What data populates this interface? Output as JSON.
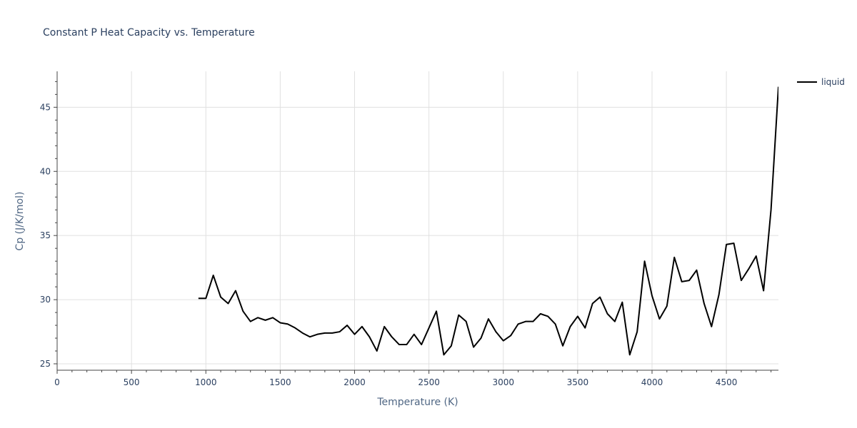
{
  "chart_data": {
    "type": "line",
    "title": "Constant P Heat Capacity vs. Temperature",
    "xlabel": "Temperature (K)",
    "ylabel": "Cp (J/K/mol)",
    "xlim": [
      0,
      4850
    ],
    "ylim": [
      24.5,
      47.8
    ],
    "x_ticks": [
      0,
      500,
      1000,
      1500,
      2000,
      2500,
      3000,
      3500,
      4000,
      4500
    ],
    "x_tick_labels": [
      "0",
      "500",
      "1000",
      "1500",
      "2000",
      "2500",
      "3000",
      "3500",
      "4000",
      "4500"
    ],
    "y_ticks": [
      25,
      30,
      35,
      40,
      45
    ],
    "y_tick_labels": [
      "25",
      "30",
      "35",
      "40",
      "45"
    ],
    "grid": true,
    "legend_position": "top-right",
    "series": [
      {
        "name": "liquid",
        "color": "#000000",
        "x": [
          950,
          1000,
          1050,
          1100,
          1150,
          1200,
          1250,
          1300,
          1350,
          1400,
          1450,
          1500,
          1550,
          1600,
          1650,
          1700,
          1750,
          1800,
          1850,
          1900,
          1950,
          2000,
          2050,
          2100,
          2150,
          2200,
          2250,
          2300,
          2350,
          2400,
          2450,
          2500,
          2550,
          2600,
          2650,
          2700,
          2750,
          2800,
          2850,
          2900,
          2950,
          3000,
          3050,
          3100,
          3150,
          3200,
          3250,
          3300,
          3350,
          3400,
          3450,
          3500,
          3550,
          3600,
          3650,
          3700,
          3750,
          3800,
          3850,
          3900,
          3950,
          4000,
          4050,
          4100,
          4150,
          4200,
          4250,
          4300,
          4350,
          4400,
          4450,
          4500,
          4550,
          4600,
          4650,
          4700,
          4750,
          4800,
          4850
        ],
        "values": [
          30.1,
          30.1,
          31.9,
          30.2,
          29.7,
          30.7,
          29.1,
          28.3,
          28.6,
          28.4,
          28.6,
          28.2,
          28.1,
          27.8,
          27.4,
          27.1,
          27.3,
          27.4,
          27.4,
          27.5,
          28.0,
          27.3,
          27.9,
          27.1,
          26.0,
          27.9,
          27.1,
          26.5,
          26.5,
          27.3,
          26.5,
          27.8,
          29.1,
          25.7,
          26.4,
          28.8,
          28.3,
          26.3,
          27.0,
          28.5,
          27.5,
          26.8,
          27.2,
          28.1,
          28.3,
          28.3,
          28.9,
          28.7,
          28.1,
          26.4,
          27.9,
          28.7,
          27.8,
          29.7,
          30.2,
          28.9,
          28.3,
          29.8,
          25.7,
          27.5,
          33.0,
          30.3,
          28.5,
          29.5,
          33.3,
          31.4,
          31.5,
          32.3,
          29.7,
          27.9,
          30.4,
          34.3,
          34.4,
          31.5,
          32.4,
          33.4,
          30.7,
          37.0,
          46.6
        ]
      }
    ]
  }
}
